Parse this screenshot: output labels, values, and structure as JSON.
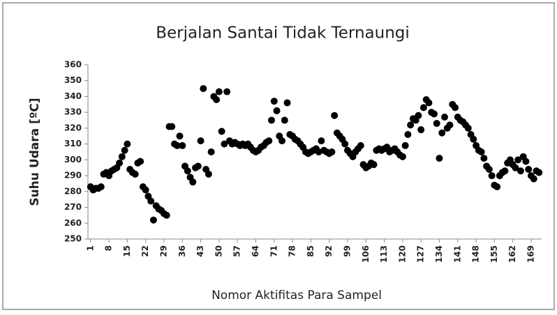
{
  "chart_data": {
    "type": "scatter",
    "title": "Berjalan Santai Tidak Ternaungi",
    "x_label": "Nomor Aktifitas Para Sampel",
    "y_label": "Suhu Udara [ºC]",
    "color": "#000000",
    "grid": false,
    "xlim": [
      0,
      173
    ],
    "ylim": [
      250,
      360
    ],
    "yticks": [
      250,
      260,
      270,
      280,
      290,
      300,
      310,
      320,
      330,
      340,
      350,
      360
    ],
    "xticks": [
      1,
      8,
      15,
      22,
      29,
      36,
      43,
      50,
      57,
      64,
      71,
      78,
      85,
      92,
      99,
      106,
      113,
      120,
      127,
      134,
      141,
      148,
      155,
      162,
      169
    ],
    "x": [
      1,
      2,
      3,
      4,
      5,
      6,
      7,
      8,
      9,
      10,
      11,
      12,
      13,
      14,
      15,
      16,
      17,
      18,
      19,
      20,
      21,
      22,
      23,
      24,
      25,
      26,
      27,
      28,
      29,
      30,
      31,
      32,
      33,
      34,
      35,
      36,
      37,
      38,
      39,
      40,
      41,
      42,
      43,
      44,
      45,
      46,
      47,
      48,
      49,
      50,
      51,
      52,
      53,
      54,
      55,
      56,
      57,
      58,
      59,
      60,
      61,
      62,
      63,
      64,
      65,
      66,
      67,
      68,
      69,
      70,
      71,
      72,
      73,
      74,
      75,
      76,
      77,
      78,
      79,
      80,
      81,
      82,
      83,
      84,
      85,
      86,
      87,
      88,
      89,
      90,
      91,
      92,
      93,
      94,
      95,
      96,
      97,
      98,
      99,
      100,
      101,
      102,
      103,
      104,
      105,
      106,
      107,
      108,
      109,
      110,
      111,
      112,
      113,
      114,
      115,
      116,
      117,
      118,
      119,
      120,
      121,
      122,
      123,
      124,
      125,
      126,
      127,
      128,
      129,
      130,
      131,
      132,
      133,
      134,
      135,
      136,
      137,
      138,
      139,
      140,
      141,
      142,
      143,
      144,
      145,
      146,
      147,
      148,
      149,
      150,
      151,
      152,
      153,
      154,
      155,
      156,
      157,
      158,
      159,
      160,
      161,
      162,
      163,
      164,
      165,
      166,
      167,
      168,
      169,
      170,
      171,
      172
    ],
    "values": [
      283,
      281,
      282,
      282,
      283,
      291,
      292,
      290,
      293,
      294,
      295,
      298,
      302,
      306,
      310,
      294,
      292,
      291,
      298,
      299,
      283,
      281,
      277,
      274,
      262,
      271,
      269,
      268,
      266,
      265,
      321,
      321,
      310,
      309,
      315,
      309,
      296,
      293,
      289,
      286,
      295,
      296,
      312,
      345,
      294,
      291,
      305,
      340,
      338,
      343,
      318,
      310,
      343,
      312,
      310,
      311,
      310,
      309,
      310,
      309,
      310,
      308,
      306,
      305,
      306,
      308,
      309,
      311,
      312,
      325,
      337,
      331,
      315,
      312,
      325,
      336,
      316,
      315,
      313,
      312,
      310,
      308,
      305,
      304,
      305,
      306,
      307,
      305,
      312,
      306,
      305,
      304,
      305,
      328,
      317,
      315,
      313,
      310,
      306,
      304,
      302,
      305,
      307,
      309,
      297,
      295,
      296,
      298,
      297,
      306,
      307,
      306,
      307,
      308,
      305,
      306,
      307,
      305,
      303,
      302,
      309,
      316,
      322,
      326,
      325,
      328,
      319,
      333,
      338,
      336,
      330,
      329,
      323,
      301,
      317,
      327,
      320,
      322,
      335,
      333,
      327,
      325,
      324,
      322,
      320,
      316,
      313,
      309,
      306,
      305,
      301,
      296,
      294,
      290,
      284,
      283,
      290,
      292,
      293,
      298,
      300,
      297,
      295,
      300,
      293,
      302,
      299,
      294,
      290,
      288,
      293,
      292
    ]
  }
}
